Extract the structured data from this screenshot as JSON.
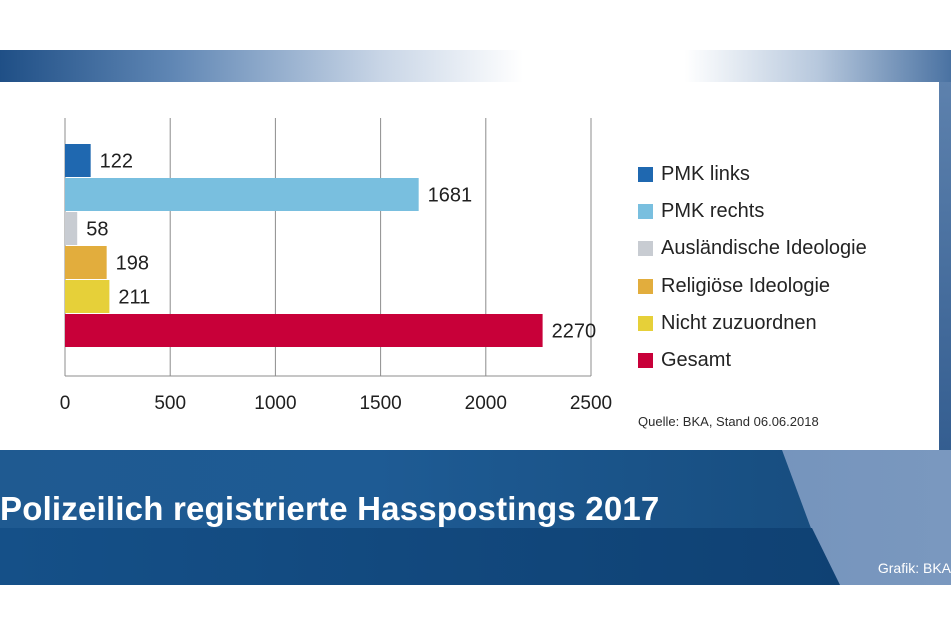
{
  "chart_data": {
    "type": "bar",
    "orientation": "horizontal",
    "title": "Polizeilich registrierte Hasspostings 2017",
    "categories": [
      "PMK links",
      "PMK rechts",
      "Ausländische Ideologie",
      "Religiöse Ideologie",
      "Nicht zuzuordnen",
      "Gesamt"
    ],
    "values": [
      122,
      1681,
      58,
      198,
      211,
      2270
    ],
    "value_labels": [
      "122",
      "1681",
      "58",
      "198",
      "211",
      "2270"
    ],
    "colors": [
      "#1f68b0",
      "#79bfdf",
      "#c8ccd2",
      "#e2ad3d",
      "#e6d039",
      "#c80039"
    ],
    "xlim": [
      0,
      2500
    ],
    "x_ticks": [
      0,
      500,
      1000,
      1500,
      2000,
      2500
    ],
    "x_tick_labels": [
      "0",
      "500",
      "1000",
      "1500",
      "2000",
      "2500"
    ],
    "grid": true,
    "legend_position": "right",
    "source": "Quelle: BKA, Stand 06.06.2018",
    "credit": "Grafik: BKA"
  }
}
